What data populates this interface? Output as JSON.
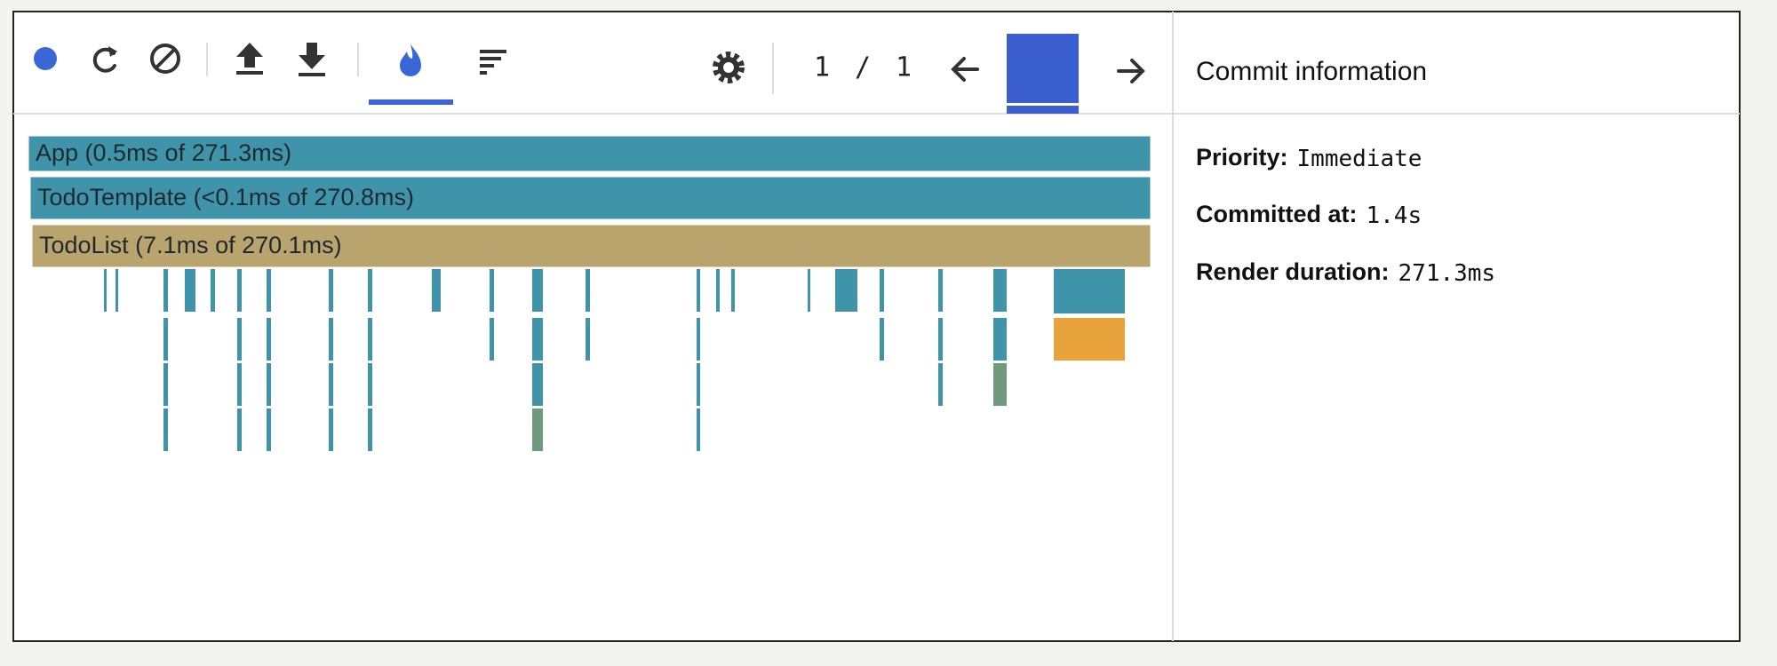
{
  "toolbar": {
    "commit_index": "1",
    "separator": "/",
    "commit_total": "1"
  },
  "flame_graph": {
    "nodes": [
      {
        "label": "App (0.5ms of 271.3ms)"
      },
      {
        "label": "TodoTemplate (<0.1ms of 270.8ms)"
      },
      {
        "label": "TodoList (7.1ms of 270.1ms)"
      }
    ]
  },
  "commit_info": {
    "title": "Commit information",
    "fields": [
      {
        "label": "Priority:",
        "value": "Immediate"
      },
      {
        "label": "Committed at:",
        "value": "1.4s"
      },
      {
        "label": "Render duration:",
        "value": "271.3ms"
      }
    ]
  }
}
